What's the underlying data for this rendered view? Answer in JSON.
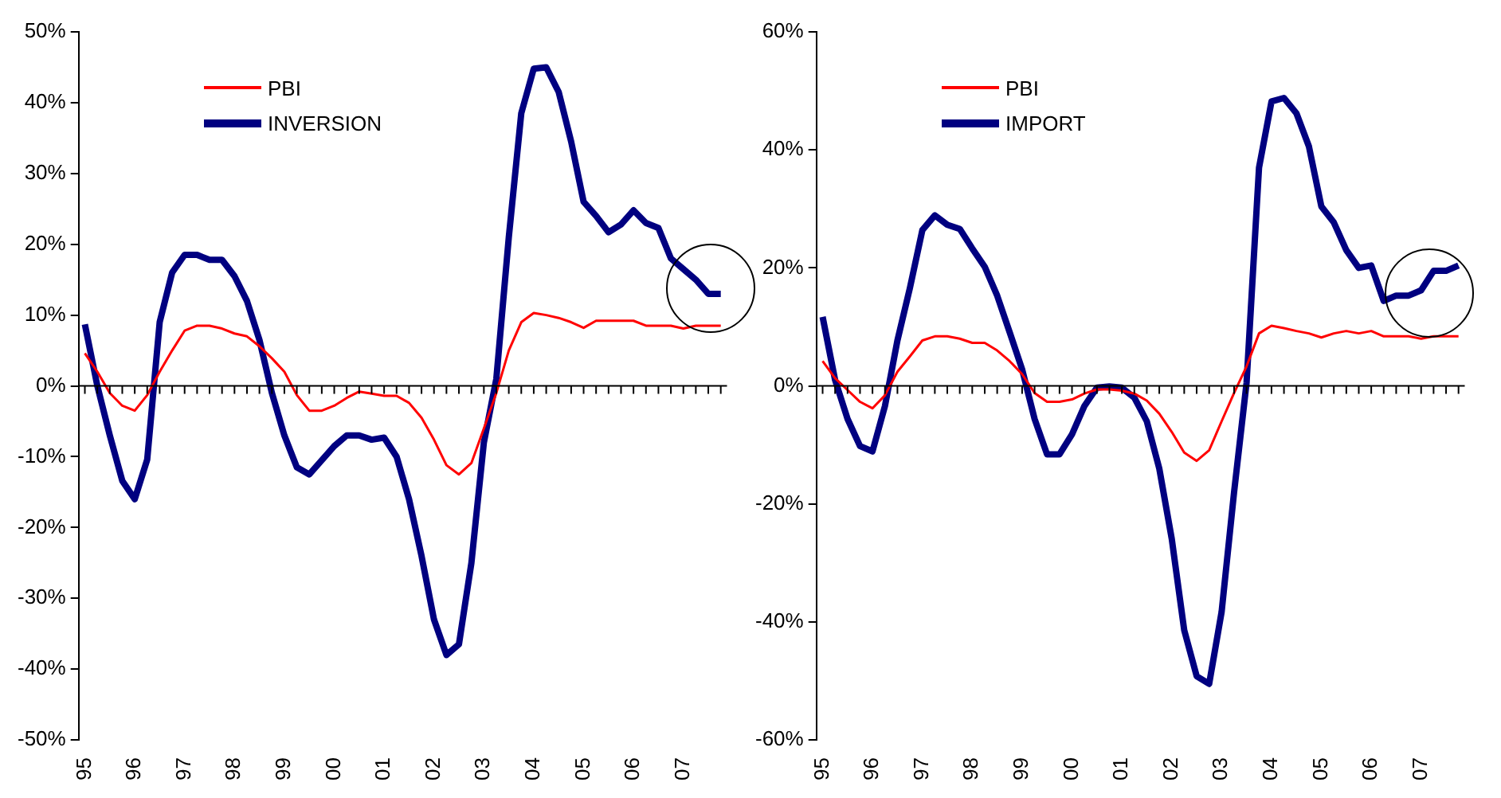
{
  "chart_data": [
    {
      "type": "line",
      "categories": [
        "95",
        null,
        null,
        null,
        "96",
        null,
        null,
        null,
        "97",
        null,
        null,
        null,
        "98",
        null,
        null,
        null,
        "99",
        null,
        null,
        null,
        "00",
        null,
        null,
        null,
        "01",
        null,
        null,
        null,
        "02",
        null,
        null,
        null,
        "03",
        null,
        null,
        null,
        "04",
        null,
        null,
        null,
        "05",
        null,
        null,
        null,
        "06",
        null,
        null,
        null,
        "07",
        null,
        null,
        null
      ],
      "series": [
        {
          "name": "PBI",
          "color": "#ff0000",
          "values": [
            4.6,
            2,
            -1,
            -2.8,
            -3.5,
            -1.3,
            2,
            5,
            7.8,
            8.5,
            8.5,
            8.1,
            7.4,
            7,
            5.6,
            3.9,
            2,
            -1.3,
            -3.5,
            -3.5,
            -2.8,
            -1.7,
            -0.8,
            -1.1,
            -1.4,
            -1.4,
            -2.4,
            -4.5,
            -7.6,
            -11.2,
            -12.5,
            -10.9,
            -6,
            -1,
            5,
            9,
            10.3,
            10,
            9.6,
            9,
            8.2,
            9.2,
            9.2,
            9.2,
            9.2,
            8.5,
            8.5,
            8.5,
            8.1,
            8.5,
            8.5,
            8.5
          ]
        },
        {
          "name": "INVERSION",
          "color": "#000080",
          "values": [
            8.7,
            0,
            -7,
            -13.4,
            -16,
            -10.4,
            9,
            16,
            18.5,
            18.5,
            17.8,
            17.8,
            15.5,
            12,
            6.5,
            -1,
            -7,
            -11.5,
            -12.5,
            -10.5,
            -8.5,
            -7,
            -7,
            -7.6,
            -7.3,
            -10,
            -16,
            -24,
            -33,
            -38,
            -36.5,
            -25,
            -8,
            1,
            21,
            38.5,
            44.8,
            45,
            41.5,
            34.5,
            26,
            24,
            21.7,
            22.8,
            24.8,
            23,
            22.3,
            18,
            16.5,
            15,
            13,
            13
          ]
        }
      ],
      "ylim": [
        -50,
        50
      ],
      "yticks": [
        {
          "value": -50,
          "label": "-50%"
        },
        {
          "value": -40,
          "label": "-40%"
        },
        {
          "value": -30,
          "label": "-30%"
        },
        {
          "value": -20,
          "label": "-20%"
        },
        {
          "value": -10,
          "label": "-10%"
        },
        {
          "value": 0,
          "label": "0%"
        },
        {
          "value": 10,
          "label": "10%"
        },
        {
          "value": 20,
          "label": "20%"
        },
        {
          "value": 30,
          "label": "30%"
        },
        {
          "value": 40,
          "label": "40%"
        },
        {
          "value": 50,
          "label": "50%"
        }
      ],
      "legend": "top left"
    },
    {
      "type": "line",
      "categories": [
        "95",
        null,
        null,
        null,
        "96",
        null,
        null,
        null,
        "97",
        null,
        null,
        null,
        "98",
        null,
        null,
        null,
        "99",
        null,
        null,
        null,
        "00",
        null,
        null,
        null,
        "01",
        null,
        null,
        null,
        "02",
        null,
        null,
        null,
        "03",
        null,
        null,
        null,
        "04",
        null,
        null,
        null,
        "05",
        null,
        null,
        null,
        "06",
        null,
        null,
        null,
        "07",
        null,
        null,
        null
      ],
      "series": [
        {
          "name": "PBI",
          "color": "#ff0000",
          "values": [
            4.2,
            1.3,
            -0.7,
            -2.7,
            -3.8,
            -1.6,
            2.4,
            5,
            7.7,
            8.4,
            8.4,
            8,
            7.3,
            7.3,
            6,
            4.2,
            2,
            -1.2,
            -2.7,
            -2.7,
            -2.3,
            -1.3,
            -0.6,
            -0.6,
            -0.8,
            -1.3,
            -2.5,
            -4.7,
            -7.8,
            -11.3,
            -12.7,
            -10.9,
            -6,
            -1.2,
            3.3,
            8.9,
            10.2,
            9.8,
            9.3,
            8.9,
            8.2,
            8.9,
            9.3,
            8.9,
            9.3,
            8.4,
            8.4,
            8.4,
            8,
            8.4,
            8.4,
            8.4
          ]
        },
        {
          "name": "IMPORT",
          "color": "#000080",
          "values": [
            11.7,
            1,
            -5.6,
            -10.2,
            -11.1,
            -3.4,
            7.7,
            16.6,
            26.4,
            28.9,
            27.3,
            26.6,
            23.3,
            20.2,
            15.3,
            9.1,
            2.8,
            -5.6,
            -11.6,
            -11.6,
            -8.2,
            -3.4,
            -0.3,
            -0.1,
            -0.3,
            -2,
            -6,
            -14,
            -25.9,
            -41.4,
            -49.2,
            -50.5,
            -38.3,
            -18,
            0.5,
            37,
            48.2,
            48.8,
            46.2,
            40.6,
            30.4,
            27.7,
            23,
            20,
            20.4,
            14.4,
            15.3,
            15.3,
            16.2,
            19.5,
            19.5,
            20.4
          ]
        }
      ],
      "ylim": [
        -60,
        60
      ],
      "yticks": [
        {
          "value": -60,
          "label": "-60%"
        },
        {
          "value": -40,
          "label": "-40%"
        },
        {
          "value": -20,
          "label": "-20%"
        },
        {
          "value": 0,
          "label": "0%"
        },
        {
          "value": 20,
          "label": "20%"
        },
        {
          "value": 40,
          "label": "40%"
        },
        {
          "value": 60,
          "label": "60%"
        }
      ],
      "legend": "top left"
    }
  ]
}
